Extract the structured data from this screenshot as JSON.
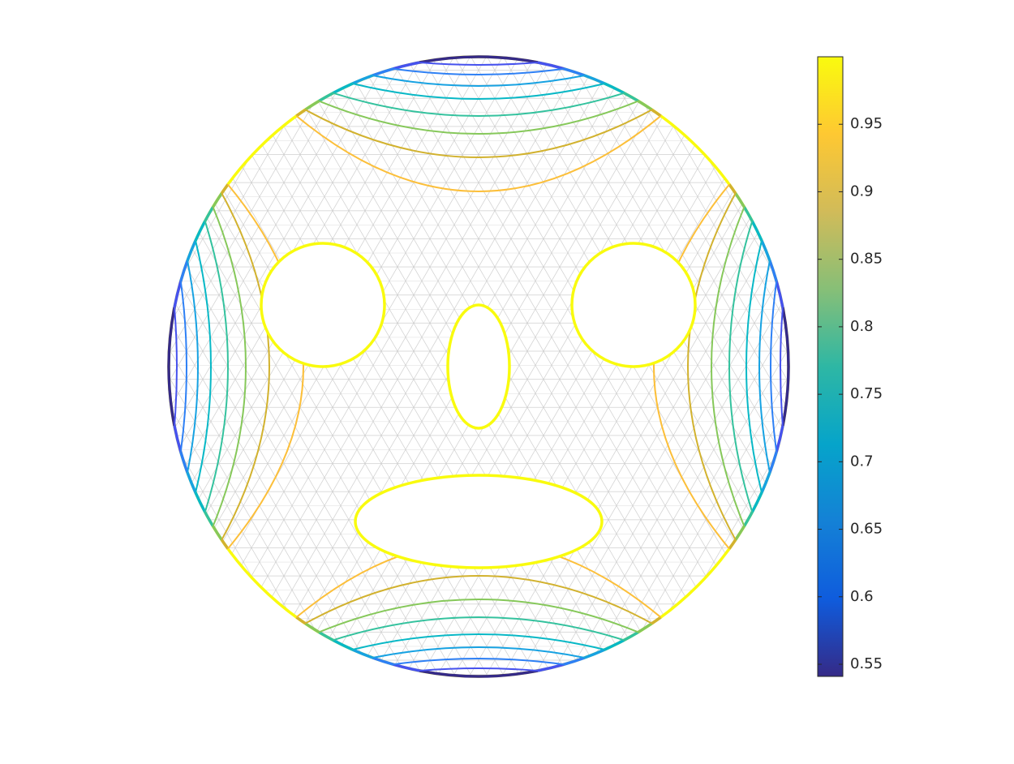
{
  "chart_data": {
    "type": "contour",
    "levels": [
      0.6,
      0.65,
      0.7,
      0.75,
      0.8,
      0.85,
      0.9,
      0.95
    ],
    "level_colors": [
      "#4652ee",
      "#2e80f5",
      "#17a2e2",
      "#08b8c6",
      "#34c29e",
      "#86c85a",
      "#d2b22f",
      "#fcbf3a"
    ],
    "colormap": [
      "#352a87",
      "#0f5cdd",
      "#1481d6",
      "#06a4ca",
      "#2eb7a4",
      "#87bf77",
      "#d1bb59",
      "#fec832",
      "#f9fb0e"
    ],
    "clim": [
      0.541,
      1.0
    ],
    "cticks": [
      0.55,
      0.6,
      0.65,
      0.7,
      0.75,
      0.8,
      0.85,
      0.9,
      0.95
    ]
  }
}
